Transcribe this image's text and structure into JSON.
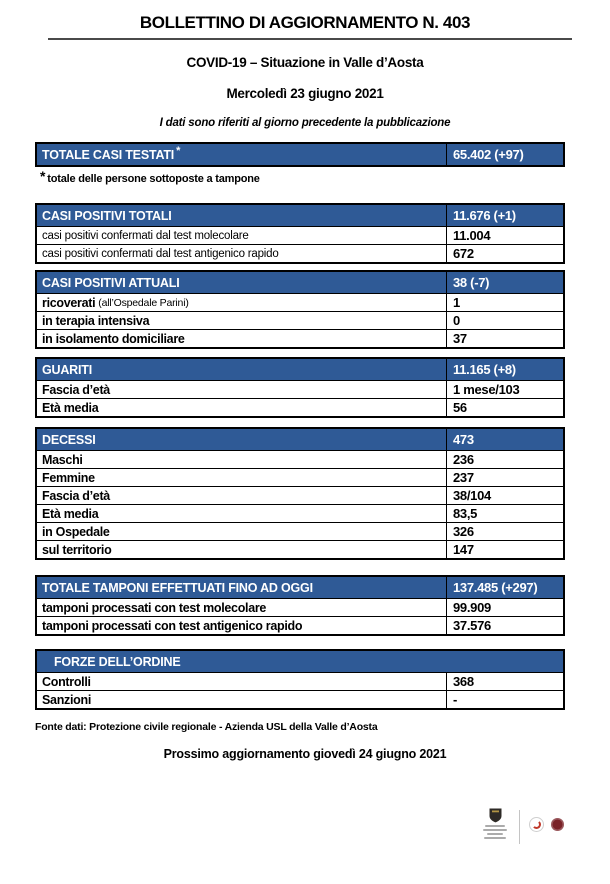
{
  "document": {
    "title": "BOLLETTINO DI AGGIORNAMENTO N. 403",
    "subtitle": "COVID-19 – Situazione in Valle d’Aosta",
    "date_line": "Mercoledì 23 giugno 2021",
    "reference_note": "I dati sono riferiti al giorno precedente la pubblicazione",
    "footnote_marker": "*",
    "footnote_text": "totale delle persone sottoposte a tampone",
    "source_line": "Fonte dati: Protezione civile regionale - Azienda USL della Valle d’Aosta",
    "next_update_line": "Prossimo aggiornamento giovedì 24 giugno 2021"
  },
  "colors": {
    "section_header_bg": "#2F5A96",
    "section_header_text": "#FFFFFF",
    "table_border": "#000000",
    "logo_red": "#C0392B",
    "logo_dark_red": "#7A2228"
  },
  "tables": [
    {
      "id": "totale-casi-testati",
      "header": {
        "label": "TOTALE CASI TESTATI",
        "marker": "*",
        "value": "65.402 (+97)"
      },
      "rows": []
    },
    {
      "id": "casi-positivi-totali",
      "header": {
        "label": "CASI POSITIVI TOTALI",
        "value": "11.676 (+1)"
      },
      "rows": [
        {
          "label": "casi positivi confermati dal test molecolare",
          "value": "11.004",
          "small": true
        },
        {
          "label": "casi positivi confermati dal test antigenico rapido",
          "value": "672",
          "small": true
        }
      ]
    },
    {
      "id": "casi-positivi-attuali",
      "header": {
        "label": "CASI POSITIVI ATTUALI",
        "value": "38 (-7)"
      },
      "rows": [
        {
          "label": "ricoverati",
          "label_note": "(all’Ospedale Parini)",
          "value": "1"
        },
        {
          "label": "in terapia intensiva",
          "value": "0"
        },
        {
          "label": "in isolamento domiciliare",
          "value": "37"
        }
      ]
    },
    {
      "id": "guariti",
      "header": {
        "label": "GUARITI",
        "value": "11.165 (+8)"
      },
      "rows": [
        {
          "label": "Fascia d’età",
          "value": "1 mese/103"
        },
        {
          "label": "Età media",
          "value": "56"
        }
      ]
    },
    {
      "id": "decessi",
      "header": {
        "label": "DECESSI",
        "value": "473"
      },
      "rows": [
        {
          "label": "Maschi",
          "value": "236"
        },
        {
          "label": "Femmine",
          "value": "237"
        },
        {
          "label": "Fascia d’età",
          "value": "38/104"
        },
        {
          "label": "Età media",
          "value": "83,5"
        },
        {
          "label": "in Ospedale",
          "value": "326"
        },
        {
          "label": "sul territorio",
          "value": "147"
        }
      ]
    },
    {
      "id": "totale-tamponi",
      "header": {
        "label": "TOTALE TAMPONI EFFETTUATI FINO AD OGGI",
        "value": "137.485 (+297)"
      },
      "rows": [
        {
          "label": "tamponi processati con test molecolare",
          "value": "99.909"
        },
        {
          "label": "tamponi processati con test antigenico rapido",
          "value": "37.576"
        }
      ]
    },
    {
      "id": "forze-dellordine",
      "header": {
        "label": "FORZE DELL’ORDINE",
        "merged": true
      },
      "rows": [
        {
          "label": "Controlli",
          "value": "368"
        },
        {
          "label": "Sanzioni",
          "value": "-"
        }
      ]
    }
  ],
  "footer_logos": [
    {
      "icon": "valle-daosta-coat-of-arms-icon"
    },
    {
      "icon": "anniversary-ribbon-icon"
    },
    {
      "icon": "usl-round-seal-icon"
    }
  ]
}
